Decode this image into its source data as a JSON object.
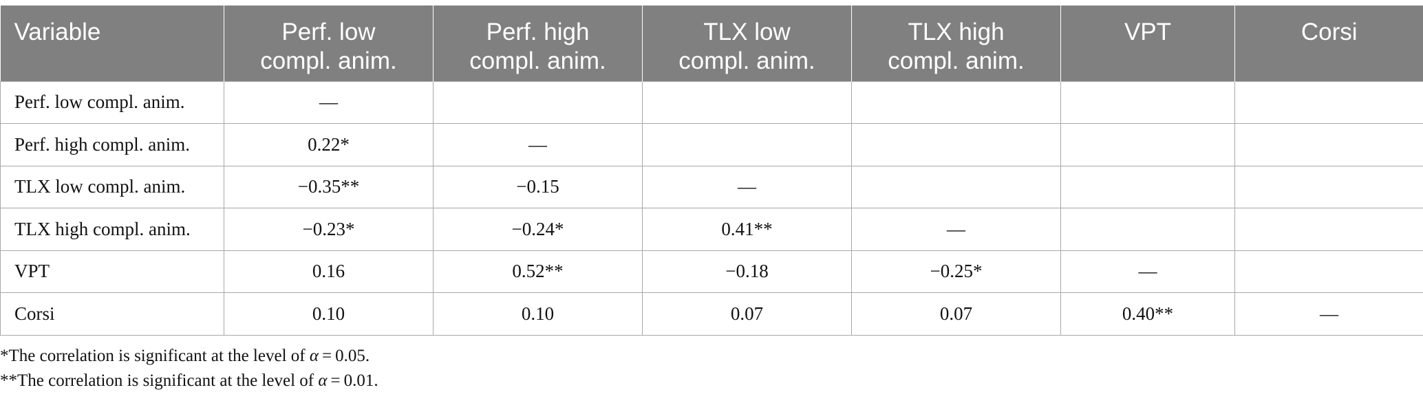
{
  "table": {
    "headers": [
      "Variable",
      "Perf. low compl. anim.",
      "Perf. high compl. anim.",
      "TLX low compl. anim.",
      "TLX high compl. anim.",
      "VPT",
      "Corsi"
    ],
    "header_lines": [
      [
        "Variable",
        ""
      ],
      [
        "Perf. low",
        "compl. anim."
      ],
      [
        "Perf. high",
        "compl. anim."
      ],
      [
        "TLX low",
        "compl. anim."
      ],
      [
        "TLX high",
        "compl. anim."
      ],
      [
        "VPT",
        ""
      ],
      [
        "Corsi",
        ""
      ]
    ],
    "rows": [
      [
        "Perf. low compl. anim.",
        "—",
        "",
        "",
        "",
        "",
        ""
      ],
      [
        "Perf. high compl. anim.",
        "0.22*",
        "—",
        "",
        "",
        "",
        ""
      ],
      [
        "TLX low compl. anim.",
        "−0.35**",
        "−0.15",
        "—",
        "",
        "",
        ""
      ],
      [
        "TLX high compl. anim.",
        "−0.23*",
        "−0.24*",
        "0.41**",
        "—",
        "",
        ""
      ],
      [
        "VPT",
        "0.16",
        "0.52**",
        "−0.18",
        "−0.25*",
        "—",
        ""
      ],
      [
        "Corsi",
        "0.10",
        "0.10",
        "0.07",
        "0.07",
        "0.40**",
        "—"
      ]
    ]
  },
  "footnotes": [
    {
      "marker": "*",
      "text_before": "The correlation is significant at the level of ",
      "symbol": "α",
      "text_after": " = 0.05."
    },
    {
      "marker": "**",
      "text_before": "The correlation is significant at the level of ",
      "symbol": "α",
      "text_after": " = 0.01."
    }
  ],
  "colors": {
    "header_bg": "#808080",
    "header_text": "#ffffff",
    "grid": "#a8a8a8"
  }
}
